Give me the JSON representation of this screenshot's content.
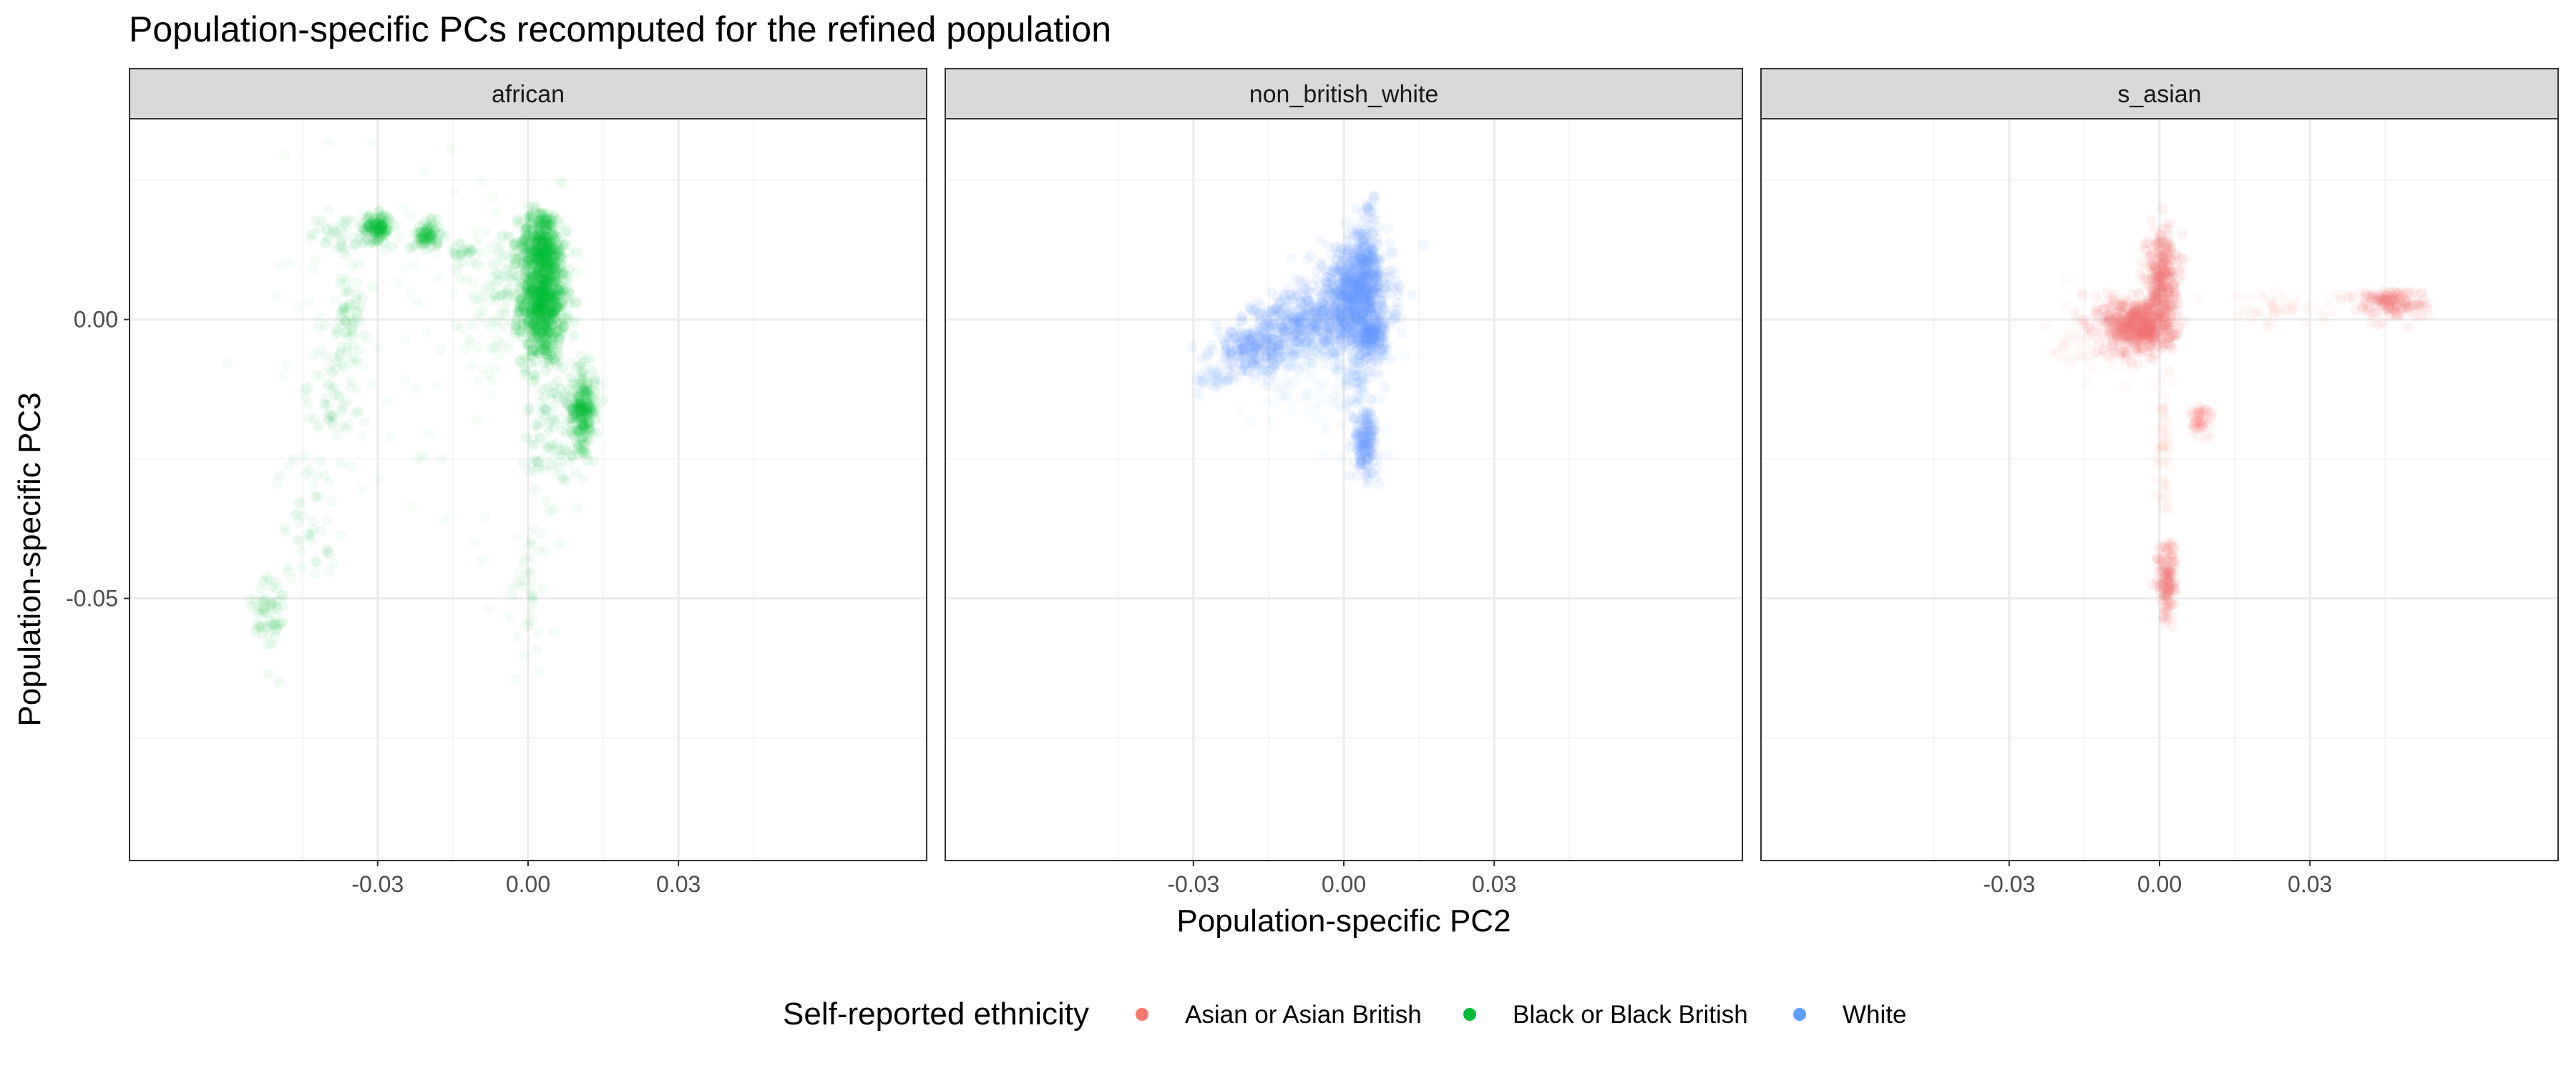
{
  "chart_data": {
    "type": "scatter",
    "title": "Population-specific PCs recomputed for the refined population",
    "xlabel": "Population-specific PC2",
    "ylabel": "Population-specific PC3",
    "xlim": [
      -0.0795,
      0.0795
    ],
    "ylim": [
      -0.097,
      0.036
    ],
    "x_ticks": [
      -0.03,
      0.0,
      0.03
    ],
    "x_tick_labels": [
      "-0.03",
      "0.00",
      "0.03"
    ],
    "y_ticks": [
      0.0,
      -0.05
    ],
    "y_tick_labels": [
      "0.00",
      "-0.05"
    ],
    "grid": true,
    "legend": {
      "title": "Self-reported ethnicity",
      "position": "bottom",
      "items": [
        {
          "label": "Asian or Asian British",
          "color": "#F8766D"
        },
        {
          "label": "Black or Black British",
          "color": "#00BA38"
        },
        {
          "label": "White",
          "color": "#619CFF"
        }
      ]
    },
    "panels": [
      {
        "strip": "african",
        "series": "Black or Black British",
        "color": "#00BA38",
        "clusters": [
          {
            "x": 0.003,
            "y": 0.004,
            "sx": 0.0022,
            "sy": 0.006,
            "n": 900,
            "alpha": 0.08
          },
          {
            "x": 0.0025,
            "y": 0.014,
            "sx": 0.002,
            "sy": 0.003,
            "n": 250,
            "alpha": 0.08
          },
          {
            "x": 0.011,
            "y": -0.016,
            "sx": 0.0012,
            "sy": 0.0035,
            "n": 220,
            "alpha": 0.08
          },
          {
            "x": -0.03,
            "y": 0.0165,
            "sx": 0.0014,
            "sy": 0.0012,
            "n": 120,
            "alpha": 0.08
          },
          {
            "x": -0.02,
            "y": 0.015,
            "sx": 0.0012,
            "sy": 0.0012,
            "n": 80,
            "alpha": 0.08
          },
          {
            "x": -0.0125,
            "y": 0.012,
            "sx": 0.0015,
            "sy": 0.0012,
            "n": 25,
            "alpha": 0.06
          },
          {
            "x": -0.036,
            "y": 0.015,
            "sx": 0.004,
            "sy": 0.002,
            "n": 60,
            "alpha": 0.05
          },
          {
            "x": -0.036,
            "y": 0.0,
            "sx": 0.0015,
            "sy": 0.004,
            "n": 60,
            "alpha": 0.06
          },
          {
            "x": -0.039,
            "y": -0.014,
            "sx": 0.0025,
            "sy": 0.005,
            "n": 50,
            "alpha": 0.05
          },
          {
            "x": -0.044,
            "y": -0.035,
            "sx": 0.003,
            "sy": 0.006,
            "n": 50,
            "alpha": 0.05
          },
          {
            "x": -0.052,
            "y": -0.053,
            "sx": 0.0018,
            "sy": 0.0045,
            "n": 60,
            "alpha": 0.06
          },
          {
            "x": 0.006,
            "y": -0.02,
            "sx": 0.003,
            "sy": 0.007,
            "n": 120,
            "alpha": 0.05
          },
          {
            "x": -0.004,
            "y": 0.005,
            "sx": 0.005,
            "sy": 0.006,
            "n": 150,
            "alpha": 0.045
          },
          {
            "x": -0.025,
            "y": 0.0,
            "sx": 0.015,
            "sy": 0.02,
            "n": 80,
            "alpha": 0.035
          },
          {
            "x": 0.0,
            "y": -0.05,
            "sx": 0.002,
            "sy": 0.007,
            "n": 40,
            "alpha": 0.04
          }
        ]
      },
      {
        "strip": "non_british_white",
        "series": "White",
        "color": "#619CFF",
        "clusters": [
          {
            "x": 0.0015,
            "y": 0.0035,
            "sx": 0.004,
            "sy": 0.0045,
            "n": 700,
            "alpha": 0.08
          },
          {
            "x": 0.004,
            "y": 0.008,
            "sx": 0.0018,
            "sy": 0.004,
            "n": 300,
            "alpha": 0.08
          },
          {
            "x": 0.0055,
            "y": -0.003,
            "sx": 0.0015,
            "sy": 0.002,
            "n": 200,
            "alpha": 0.08
          },
          {
            "x": -0.008,
            "y": -0.001,
            "sx": 0.005,
            "sy": 0.003,
            "n": 350,
            "alpha": 0.08
          },
          {
            "x": -0.018,
            "y": -0.0055,
            "sx": 0.004,
            "sy": 0.0022,
            "n": 250,
            "alpha": 0.08
          },
          {
            "x": -0.026,
            "y": -0.011,
            "sx": 0.002,
            "sy": 0.0012,
            "n": 40,
            "alpha": 0.05
          },
          {
            "x": 0.0043,
            "y": -0.022,
            "sx": 0.0012,
            "sy": 0.003,
            "n": 180,
            "alpha": 0.08
          },
          {
            "x": 0.0025,
            "y": -0.01,
            "sx": 0.0012,
            "sy": 0.003,
            "n": 60,
            "alpha": 0.05
          },
          {
            "x": 0.0055,
            "y": 0.02,
            "sx": 0.0007,
            "sy": 0.0015,
            "n": 20,
            "alpha": 0.06
          },
          {
            "x": -0.005,
            "y": -0.008,
            "sx": 0.007,
            "sy": 0.006,
            "n": 150,
            "alpha": 0.035
          }
        ]
      },
      {
        "strip": "s_asian",
        "series": "Asian or Asian British",
        "color": "#F8766D",
        "clusters": [
          {
            "x": -0.004,
            "y": -0.001,
            "sx": 0.0035,
            "sy": 0.0025,
            "n": 600,
            "alpha": 0.08
          },
          {
            "x": 0.0003,
            "y": 0.008,
            "sx": 0.0015,
            "sy": 0.004,
            "n": 300,
            "alpha": 0.08
          },
          {
            "x": 0.046,
            "y": 0.003,
            "sx": 0.0035,
            "sy": 0.0013,
            "n": 150,
            "alpha": 0.08
          },
          {
            "x": 0.025,
            "y": 0.002,
            "sx": 0.007,
            "sy": 0.0015,
            "n": 50,
            "alpha": 0.04
          },
          {
            "x": 0.008,
            "y": -0.018,
            "sx": 0.0012,
            "sy": 0.0015,
            "n": 50,
            "alpha": 0.07
          },
          {
            "x": 0.0015,
            "y": -0.047,
            "sx": 0.001,
            "sy": 0.0035,
            "n": 150,
            "alpha": 0.08
          },
          {
            "x": 0.0008,
            "y": -0.025,
            "sx": 0.0007,
            "sy": 0.009,
            "n": 60,
            "alpha": 0.04
          },
          {
            "x": -0.01,
            "y": -0.003,
            "sx": 0.006,
            "sy": 0.004,
            "n": 100,
            "alpha": 0.035
          }
        ]
      }
    ]
  }
}
